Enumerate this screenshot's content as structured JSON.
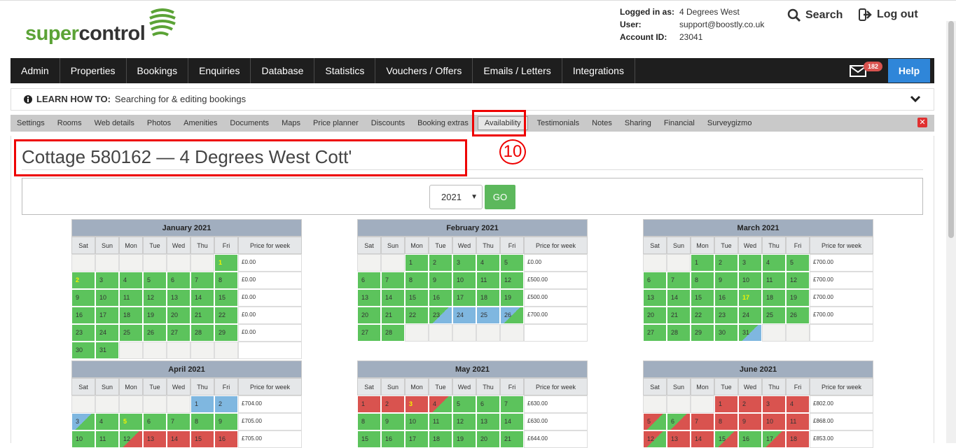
{
  "brand": {
    "word_green": "super",
    "word_dark": "control"
  },
  "account": {
    "logged_in_label": "Logged in as:",
    "logged_in_value": "4 Degrees West",
    "user_label": "User:",
    "user_value": "support@boostly.co.uk",
    "account_label": "Account ID:",
    "account_value": "23041"
  },
  "header": {
    "search_label": "Search",
    "logout_label": "Log out"
  },
  "nav": {
    "items": [
      "Admin",
      "Properties",
      "Bookings",
      "Enquiries",
      "Database",
      "Statistics",
      "Vouchers / Offers",
      "Emails / Letters",
      "Integrations"
    ],
    "mail_count": "182",
    "help_label": "Help"
  },
  "learn": {
    "prefix": "LEARN HOW TO:",
    "text": "Searching for & editing bookings"
  },
  "subnav": {
    "items": [
      "Settings",
      "Rooms",
      "Web details",
      "Photos",
      "Amenities",
      "Documents",
      "Maps",
      "Price planner",
      "Discounts",
      "Booking extras",
      "Availability",
      "Testimonials",
      "Notes",
      "Sharing",
      "Financial",
      "Surveygizmo"
    ],
    "active": "Availability"
  },
  "annotation": "10",
  "page": {
    "title": "Cottage 580162 — 4 Degrees West Cott'"
  },
  "year_select": {
    "value": "2021",
    "go_label": "GO"
  },
  "day_headers": [
    "Sat",
    "Sun",
    "Mon",
    "Tue",
    "Wed",
    "Thu",
    "Fri"
  ],
  "price_header": "Price for week",
  "months": [
    {
      "name": "January 2021",
      "weeks": [
        {
          "days": [
            [
              "",
              "e"
            ],
            [
              "",
              "e"
            ],
            [
              "",
              "e"
            ],
            [
              "",
              "e"
            ],
            [
              "",
              "e"
            ],
            [
              "",
              "e"
            ],
            [
              "1",
              "g sel"
            ]
          ],
          "price": "£0.00"
        },
        {
          "days": [
            [
              "2",
              "g sel"
            ],
            [
              "3",
              "g"
            ],
            [
              "4",
              "g"
            ],
            [
              "5",
              "g"
            ],
            [
              "6",
              "g"
            ],
            [
              "7",
              "g"
            ],
            [
              "8",
              "g"
            ]
          ],
          "price": "£0.00"
        },
        {
          "days": [
            [
              "9",
              "g"
            ],
            [
              "10",
              "g"
            ],
            [
              "11",
              "g"
            ],
            [
              "12",
              "g"
            ],
            [
              "13",
              "g"
            ],
            [
              "14",
              "g"
            ],
            [
              "15",
              "g"
            ]
          ],
          "price": "£0.00"
        },
        {
          "days": [
            [
              "16",
              "g"
            ],
            [
              "17",
              "g"
            ],
            [
              "18",
              "g"
            ],
            [
              "19",
              "g"
            ],
            [
              "20",
              "g"
            ],
            [
              "21",
              "g"
            ],
            [
              "22",
              "g"
            ]
          ],
          "price": "£0.00"
        },
        {
          "days": [
            [
              "23",
              "g"
            ],
            [
              "24",
              "g"
            ],
            [
              "25",
              "g"
            ],
            [
              "26",
              "g"
            ],
            [
              "27",
              "g"
            ],
            [
              "28",
              "g"
            ],
            [
              "29",
              "g"
            ]
          ],
          "price": "£0.00"
        },
        {
          "days": [
            [
              "30",
              "g"
            ],
            [
              "31",
              "g"
            ],
            [
              "",
              "e"
            ],
            [
              "",
              "e"
            ],
            [
              "",
              "e"
            ],
            [
              "",
              "e"
            ],
            [
              "",
              "e"
            ]
          ],
          "price": ""
        }
      ]
    },
    {
      "name": "February 2021",
      "weeks": [
        {
          "days": [
            [
              "",
              "e"
            ],
            [
              "",
              "e"
            ],
            [
              "1",
              "g"
            ],
            [
              "2",
              "g"
            ],
            [
              "3",
              "g"
            ],
            [
              "4",
              "g"
            ],
            [
              "5",
              "g"
            ]
          ],
          "price": "£0.00"
        },
        {
          "days": [
            [
              "6",
              "g"
            ],
            [
              "7",
              "g"
            ],
            [
              "8",
              "g"
            ],
            [
              "9",
              "g"
            ],
            [
              "10",
              "g"
            ],
            [
              "11",
              "g"
            ],
            [
              "12",
              "g"
            ]
          ],
          "price": "£500.00"
        },
        {
          "days": [
            [
              "13",
              "g"
            ],
            [
              "14",
              "g"
            ],
            [
              "15",
              "g"
            ],
            [
              "16",
              "g"
            ],
            [
              "17",
              "g"
            ],
            [
              "18",
              "g"
            ],
            [
              "19",
              "g"
            ]
          ],
          "price": "£500.00"
        },
        {
          "days": [
            [
              "20",
              "g"
            ],
            [
              "21",
              "g"
            ],
            [
              "22",
              "g"
            ],
            [
              "23",
              "gb"
            ],
            [
              "24",
              "b"
            ],
            [
              "25",
              "b"
            ],
            [
              "26",
              "bg"
            ]
          ],
          "price": "£700.00"
        },
        {
          "days": [
            [
              "27",
              "g"
            ],
            [
              "28",
              "g"
            ],
            [
              "",
              "e"
            ],
            [
              "",
              "e"
            ],
            [
              "",
              "e"
            ],
            [
              "",
              "e"
            ],
            [
              "",
              "e"
            ]
          ],
          "price": ""
        }
      ]
    },
    {
      "name": "March 2021",
      "weeks": [
        {
          "days": [
            [
              "",
              "e"
            ],
            [
              "",
              "e"
            ],
            [
              "1",
              "g"
            ],
            [
              "2",
              "g"
            ],
            [
              "3",
              "g"
            ],
            [
              "4",
              "g"
            ],
            [
              "5",
              "g"
            ]
          ],
          "price": "£700.00"
        },
        {
          "days": [
            [
              "6",
              "g"
            ],
            [
              "7",
              "g"
            ],
            [
              "8",
              "g"
            ],
            [
              "9",
              "g"
            ],
            [
              "10",
              "g"
            ],
            [
              "11",
              "g"
            ],
            [
              "12",
              "g"
            ]
          ],
          "price": "£700.00"
        },
        {
          "days": [
            [
              "13",
              "g"
            ],
            [
              "14",
              "g"
            ],
            [
              "15",
              "g"
            ],
            [
              "16",
              "g"
            ],
            [
              "17",
              "g sel"
            ],
            [
              "18",
              "g"
            ],
            [
              "19",
              "g"
            ]
          ],
          "price": "£700.00"
        },
        {
          "days": [
            [
              "20",
              "g"
            ],
            [
              "21",
              "g"
            ],
            [
              "22",
              "g"
            ],
            [
              "23",
              "g"
            ],
            [
              "24",
              "g"
            ],
            [
              "25",
              "g"
            ],
            [
              "26",
              "g"
            ]
          ],
          "price": "£700.00"
        },
        {
          "days": [
            [
              "27",
              "g"
            ],
            [
              "28",
              "g"
            ],
            [
              "29",
              "g"
            ],
            [
              "30",
              "g"
            ],
            [
              "31",
              "gb"
            ],
            [
              "",
              "e"
            ],
            [
              "",
              "e"
            ]
          ],
          "price": ""
        }
      ]
    },
    {
      "name": "April 2021",
      "weeks": [
        {
          "days": [
            [
              "",
              "e"
            ],
            [
              "",
              "e"
            ],
            [
              "",
              "e"
            ],
            [
              "",
              "e"
            ],
            [
              "",
              "e"
            ],
            [
              "1",
              "b"
            ],
            [
              "2",
              "b"
            ]
          ],
          "price": "£704.00"
        },
        {
          "days": [
            [
              "3",
              "bg"
            ],
            [
              "4",
              "g"
            ],
            [
              "5",
              "g sel"
            ],
            [
              "6",
              "g"
            ],
            [
              "7",
              "g"
            ],
            [
              "8",
              "g"
            ],
            [
              "9",
              "g"
            ]
          ],
          "price": "£705.00"
        },
        {
          "days": [
            [
              "10",
              "g"
            ],
            [
              "11",
              "g"
            ],
            [
              "12",
              "gr"
            ],
            [
              "13",
              "r"
            ],
            [
              "14",
              "r"
            ],
            [
              "15",
              "r"
            ],
            [
              "16",
              "r"
            ]
          ],
          "price": "£705.00"
        }
      ]
    },
    {
      "name": "May 2021",
      "weeks": [
        {
          "days": [
            [
              "1",
              "r"
            ],
            [
              "2",
              "r"
            ],
            [
              "3",
              "r sel"
            ],
            [
              "4",
              "rg"
            ],
            [
              "5",
              "g"
            ],
            [
              "6",
              "g"
            ],
            [
              "7",
              "g"
            ]
          ],
          "price": "£630.00"
        },
        {
          "days": [
            [
              "8",
              "g"
            ],
            [
              "9",
              "g"
            ],
            [
              "10",
              "g"
            ],
            [
              "11",
              "g"
            ],
            [
              "12",
              "g"
            ],
            [
              "13",
              "g"
            ],
            [
              "14",
              "g"
            ]
          ],
          "price": "£630.00"
        },
        {
          "days": [
            [
              "15",
              "g"
            ],
            [
              "16",
              "g"
            ],
            [
              "17",
              "g"
            ],
            [
              "18",
              "g"
            ],
            [
              "19",
              "g"
            ],
            [
              "20",
              "g"
            ],
            [
              "21",
              "g"
            ]
          ],
          "price": "£644.00"
        }
      ]
    },
    {
      "name": "June 2021",
      "weeks": [
        {
          "days": [
            [
              "",
              "e"
            ],
            [
              "",
              "e"
            ],
            [
              "",
              "e"
            ],
            [
              "1",
              "r"
            ],
            [
              "2",
              "r"
            ],
            [
              "3",
              "r"
            ],
            [
              "4",
              "r"
            ]
          ],
          "price": "£802.00"
        },
        {
          "days": [
            [
              "5",
              "rg"
            ],
            [
              "6",
              "gr"
            ],
            [
              "7",
              "r"
            ],
            [
              "8",
              "r"
            ],
            [
              "9",
              "r"
            ],
            [
              "10",
              "r"
            ],
            [
              "11",
              "r"
            ]
          ],
          "price": "£868.00"
        },
        {
          "days": [
            [
              "12",
              "rg"
            ],
            [
              "13",
              "r"
            ],
            [
              "14",
              "r"
            ],
            [
              "15",
              "gr"
            ],
            [
              "16",
              "g"
            ],
            [
              "17",
              "gr"
            ],
            [
              "18",
              "r"
            ]
          ],
          "price": "£853.00"
        }
      ]
    }
  ]
}
